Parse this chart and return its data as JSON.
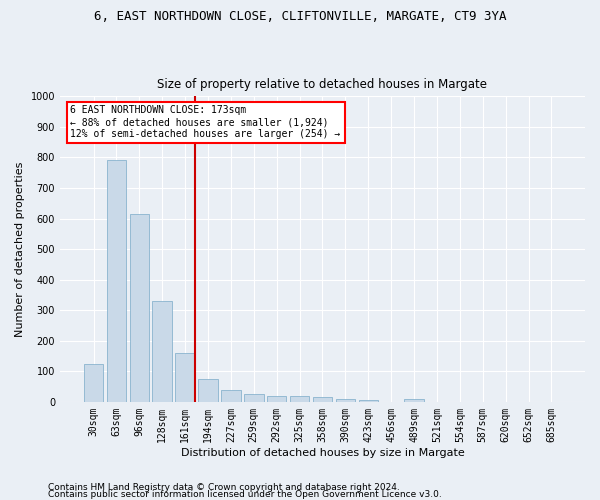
{
  "title1": "6, EAST NORTHDOWN CLOSE, CLIFTONVILLE, MARGATE, CT9 3YA",
  "title2": "Size of property relative to detached houses in Margate",
  "xlabel": "Distribution of detached houses by size in Margate",
  "ylabel": "Number of detached properties",
  "categories": [
    "30sqm",
    "63sqm",
    "96sqm",
    "128sqm",
    "161sqm",
    "194sqm",
    "227sqm",
    "259sqm",
    "292sqm",
    "325sqm",
    "358sqm",
    "390sqm",
    "423sqm",
    "456sqm",
    "489sqm",
    "521sqm",
    "554sqm",
    "587sqm",
    "620sqm",
    "652sqm",
    "685sqm"
  ],
  "values": [
    125,
    790,
    615,
    330,
    160,
    75,
    40,
    25,
    20,
    20,
    15,
    10,
    5,
    0,
    10,
    0,
    0,
    0,
    0,
    0,
    0
  ],
  "bar_color": "#c9d9e8",
  "bar_edge_color": "#7aaac8",
  "red_line_bar_index": 4,
  "annotation_text": "6 EAST NORTHDOWN CLOSE: 173sqm\n← 88% of detached houses are smaller (1,924)\n12% of semi-detached houses are larger (254) →",
  "annotation_box_color": "white",
  "annotation_box_edge_color": "red",
  "red_line_color": "#cc0000",
  "ylim": [
    0,
    1000
  ],
  "yticks": [
    0,
    100,
    200,
    300,
    400,
    500,
    600,
    700,
    800,
    900,
    1000
  ],
  "footnote1": "Contains HM Land Registry data © Crown copyright and database right 2024.",
  "footnote2": "Contains public sector information licensed under the Open Government Licence v3.0.",
  "background_color": "#eaeff5",
  "plot_bg_color": "#eaeff5",
  "grid_color": "#ffffff",
  "title1_fontsize": 9,
  "title2_fontsize": 8.5,
  "tick_fontsize": 7,
  "label_fontsize": 8,
  "footnote_fontsize": 6.5
}
